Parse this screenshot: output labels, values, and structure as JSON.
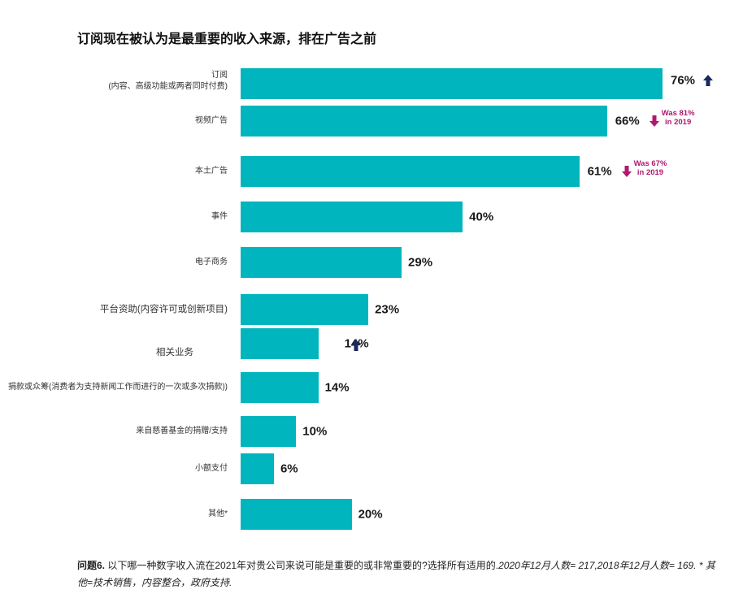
{
  "chart_data": {
    "type": "bar",
    "orientation": "horizontal",
    "title": "订阅现在被认为是最重要的收入来源，排在广告之前",
    "categories": [
      "订阅\n(内容、高级功能或两者同时付费)",
      "视频广告",
      "本土广告",
      "事件",
      "电子商务",
      "平台资助(内容许可或创新项目)",
      "相关业务",
      "捐款或众筹(消费者为支持新闻工作而进行的一次或多次捐款))",
      "来自慈善基金的捐赠/支持",
      "小额支付",
      "其他*"
    ],
    "values": [
      76,
      66,
      61,
      40,
      29,
      23,
      14,
      14,
      10,
      6,
      20
    ],
    "value_labels": [
      "76%",
      "66%",
      "61%",
      "40%",
      "29%",
      "23%",
      "14%",
      "14%",
      "10%",
      "6%",
      "20%"
    ],
    "trend": [
      "up",
      "down",
      "down",
      "",
      "",
      "",
      "up",
      "",
      "",
      "",
      ""
    ],
    "annotations": [
      {
        "index": 1,
        "text": "Was 81%\nin 2019"
      },
      {
        "index": 2,
        "text": "Was 67%\nin 2019"
      }
    ],
    "bar_color": "#00b5bd",
    "up_color": "#1a2a5a",
    "down_color": "#b0186e",
    "grid": false
  },
  "footnote": {
    "bold": "问题6.",
    "text": " 以下哪一种数字收入流在2021年对贵公司来说可能是重要的或非常重要的?选择所有适用的.",
    "italic": "2020年12月人数= 217,2018年12月人数= 169. * 其他=技术销售，内容整合，政府支持."
  }
}
